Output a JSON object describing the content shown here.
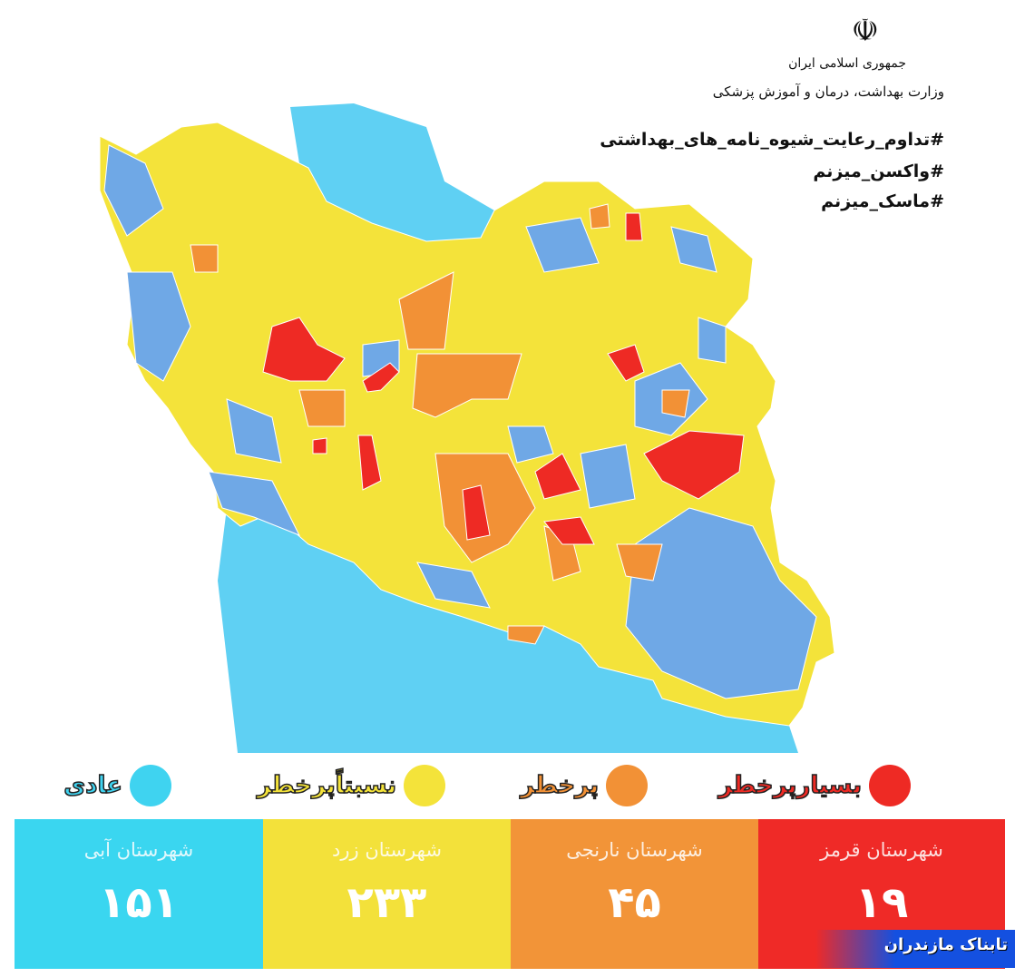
{
  "header": {
    "emblem": "☫",
    "government": "جمهوری اسلامی ایران",
    "ministry": "وزارت بهداشت، درمان و آموزش پزشکی",
    "hashtags": [
      "#تداوم_رعایت_شیوه_نامه_های_بهداشتی",
      "#واکسن_میزنم",
      "#ماسک_میزنم"
    ]
  },
  "colors": {
    "water": "#5fd0f3",
    "blue": "#6fa8e6",
    "yellow": "#f4e33a",
    "orange": "#f29136",
    "red": "#ee2a24",
    "legend_blue": "#3fd3f0",
    "panel_blue": "#3ad6f0",
    "panel_yellow": "#f3e13a",
    "panel_orange": "#f29438",
    "panel_red": "#ef2a27"
  },
  "legend": [
    {
      "label": "بسیارپرخطر",
      "color": "#ee2a24"
    },
    {
      "label": "پرخطر",
      "color": "#f29136"
    },
    {
      "label": "نسبتاًپرخطر",
      "color": "#f4e33a"
    },
    {
      "label": "عادی",
      "color": "#3fd3f0"
    }
  ],
  "summary": [
    {
      "title": "شهرستان قرمز",
      "count": "۱۹"
    },
    {
      "title": "شهرستان نارنجی",
      "count": "۴۵"
    },
    {
      "title": "شهرستان زرد",
      "count": "۲۳۳"
    },
    {
      "title": "شهرستان آبی",
      "count": "۱۵۱"
    }
  ],
  "watermark": "تابناک مازندران"
}
